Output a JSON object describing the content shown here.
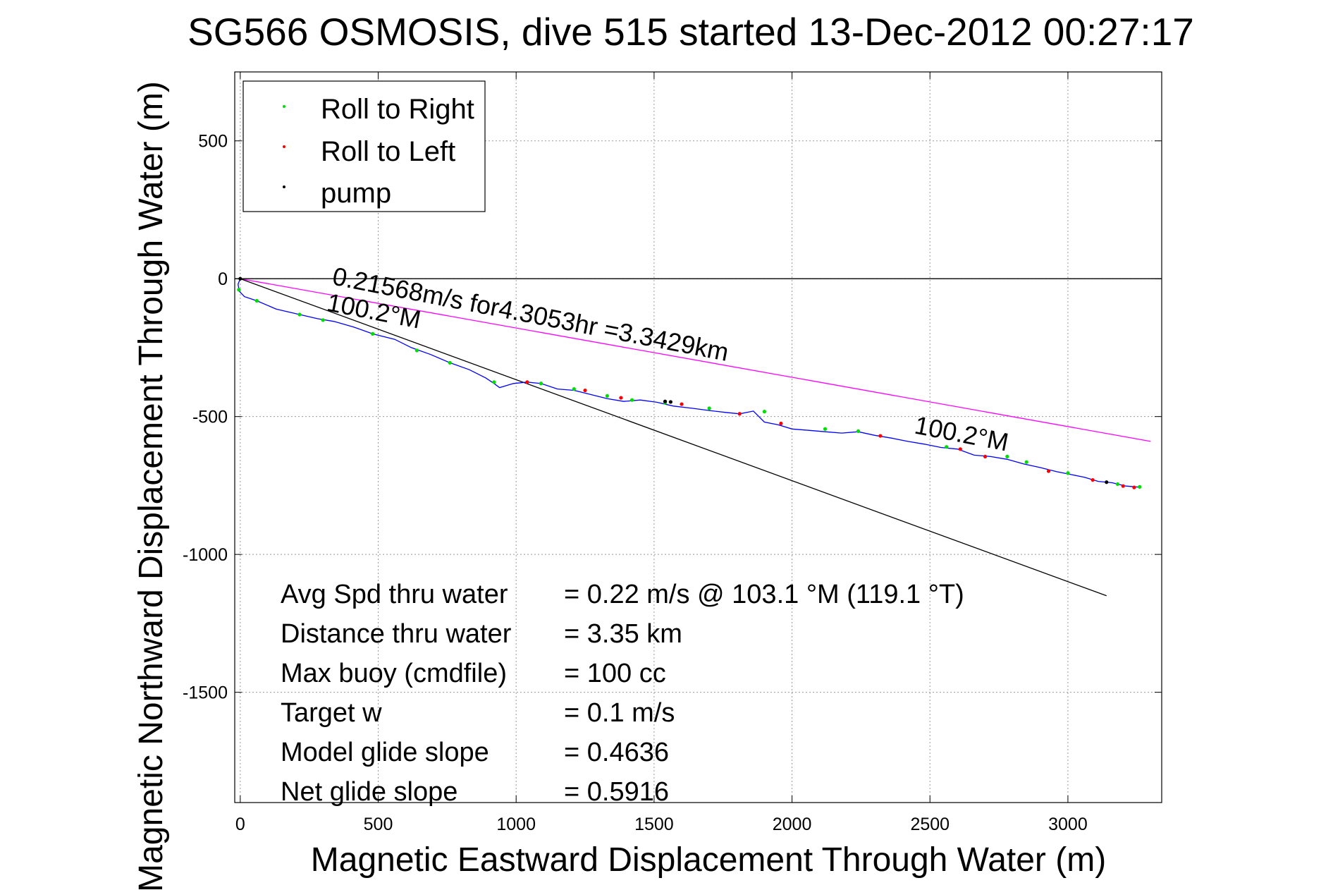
{
  "chart_data": {
    "type": "scatter",
    "title": "SG566 OSMOSIS, dive 515 started 13-Dec-2012 00:27:17",
    "xlabel": "Magnetic Eastward Displacement Through Water (m)",
    "ylabel": "Magnetic Northward Displacement Through Water (m)",
    "xlim": [
      -20,
      3340
    ],
    "ylim": [
      -1900,
      750
    ],
    "xticks": [
      0,
      500,
      1000,
      1500,
      2000,
      2500,
      3000
    ],
    "xtick_labels": [
      "0",
      "500",
      "1000",
      "1500",
      "2000",
      "2500",
      "3000"
    ],
    "yticks": [
      500,
      0,
      -500,
      -1000,
      -1500
    ],
    "ytick_labels": [
      "500",
      "0",
      "-500",
      "-1000",
      "-1500"
    ],
    "grid": true,
    "legend": {
      "position": "top-left",
      "entries": [
        {
          "label": "Roll to Right",
          "color": "#00dd00"
        },
        {
          "label": "Roll to Left",
          "color": "#ff0000"
        },
        {
          "label": "pump",
          "color": "#000000"
        }
      ]
    },
    "track": {
      "name": "glider track",
      "color": "#0000ff",
      "x": [
        0,
        -8,
        -4,
        15,
        60,
        130,
        215,
        280,
        340,
        410,
        480,
        560,
        620,
        690,
        760,
        830,
        890,
        920,
        940,
        990,
        1040,
        1090,
        1150,
        1210,
        1270,
        1330,
        1390,
        1450,
        1510,
        1570,
        1640,
        1700,
        1760,
        1810,
        1860,
        1900,
        1950,
        2000,
        2060,
        2120,
        2180,
        2240,
        2300,
        2360,
        2420,
        2480,
        2540,
        2600,
        2660,
        2720,
        2780,
        2840,
        2900,
        2960,
        3010,
        3060,
        3110,
        3160,
        3210,
        3260
      ],
      "y": [
        0,
        -20,
        -45,
        -65,
        -80,
        -110,
        -130,
        -145,
        -155,
        -175,
        -200,
        -220,
        -250,
        -275,
        -305,
        -330,
        -360,
        -380,
        -395,
        -380,
        -375,
        -380,
        -400,
        -405,
        -420,
        -435,
        -445,
        -440,
        -448,
        -462,
        -470,
        -478,
        -485,
        -490,
        -480,
        -520,
        -530,
        -545,
        -550,
        -555,
        -560,
        -555,
        -568,
        -578,
        -590,
        -600,
        -612,
        -618,
        -640,
        -645,
        -655,
        -672,
        -685,
        -700,
        -710,
        -720,
        -735,
        -740,
        -752,
        -756
      ]
    },
    "markers": {
      "roll_right": {
        "x": [
          -5,
          60,
          215,
          300,
          480,
          640,
          760,
          920,
          1090,
          1210,
          1330,
          1420,
          1540,
          1700,
          1900,
          2120,
          2240,
          2560,
          2780,
          2850,
          3000,
          3180,
          3260
        ],
        "y": [
          -40,
          -80,
          -130,
          -150,
          -200,
          -260,
          -305,
          -375,
          -380,
          -400,
          -425,
          -440,
          -450,
          -470,
          -482,
          -545,
          -553,
          -610,
          -645,
          -665,
          -705,
          -745,
          -755
        ]
      },
      "roll_left": {
        "x": [
          1040,
          1250,
          1380,
          1600,
          1810,
          1960,
          2320,
          2610,
          2700,
          2930,
          3090,
          3200,
          3240
        ],
        "y": [
          -375,
          -405,
          -432,
          -455,
          -490,
          -525,
          -570,
          -618,
          -645,
          -698,
          -730,
          -752,
          -757
        ]
      },
      "pump": {
        "x": [
          0,
          1540,
          1560,
          3140
        ],
        "y": [
          0,
          -445,
          -447,
          -738
        ]
      }
    },
    "lines": [
      {
        "name": "speed vector",
        "color": "#ff00ff",
        "x": [
          0,
          3300
        ],
        "y": [
          0,
          -590
        ]
      },
      {
        "name": "heading reference",
        "color": "#000000",
        "x": [
          0,
          3140
        ],
        "y": [
          0,
          -1150
        ]
      },
      {
        "name": "zero line",
        "color": "#000000",
        "x": [
          -20,
          3340
        ],
        "y": [
          0,
          0
        ]
      }
    ],
    "annotations": [
      {
        "text": "0.21568m/s for4.3053hr =3.3429km",
        "x": 330,
        "y": -20,
        "rotate": 11
      },
      {
        "text": "100.2°M",
        "x": 310,
        "y": -115,
        "rotate": 11
      },
      {
        "text": "100.2°M",
        "x": 2440,
        "y": -560,
        "rotate": 11
      }
    ],
    "stats": [
      {
        "label": "Avg Spd thru water",
        "value": "=  0.22 m/s @ 103.1 °M (119.1 °T)"
      },
      {
        "label": "Distance thru water",
        "value": "=  3.35 km"
      },
      {
        "label": "Max buoy (cmdfile)",
        "value": "= 100 cc"
      },
      {
        "label": "Target w",
        "value": "= 0.1 m/s"
      },
      {
        "label": "Model glide slope",
        "value": "= 0.4636"
      },
      {
        "label": "Net glide slope",
        "value": "= 0.5916"
      }
    ]
  }
}
